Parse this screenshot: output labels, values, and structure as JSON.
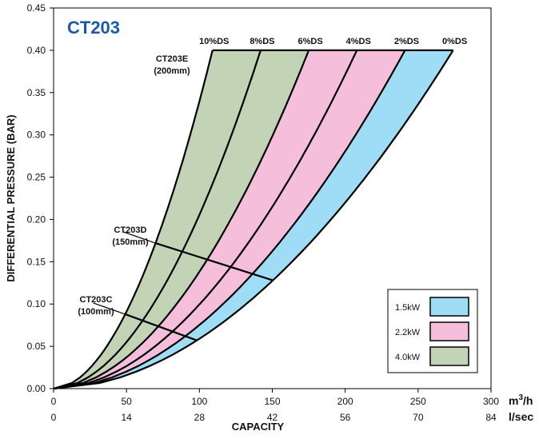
{
  "chart_data": {
    "type": "area",
    "title": "CT203",
    "xlabel": "CAPACITY",
    "ylabel": "DIFFERENTIAL PRESSURE (BAR)",
    "x_unit": "m³/h",
    "x2_unit": "l/sec",
    "xlim": [
      0,
      300
    ],
    "ylim": [
      0,
      0.45
    ],
    "x_ticks": [
      "0",
      "50",
      "100",
      "150",
      "200",
      "250",
      "300"
    ],
    "x2_ticks": [
      "0",
      "14",
      "28",
      "42",
      "56",
      "70",
      "84"
    ],
    "y_ticks": [
      "0.00",
      "0.05",
      "0.10",
      "0.15",
      "0.20",
      "0.25",
      "0.30",
      "0.35",
      "0.40",
      "0.45"
    ],
    "grid": false,
    "curve_labels": [
      "10%DS",
      "8%DS",
      "6%DS",
      "4%DS",
      "2%DS",
      "0%DS"
    ],
    "curves_at_max_pressure": [
      {
        "name": "10%DS",
        "x": 109,
        "y": 0.4
      },
      {
        "name": "8%DS",
        "x": 142,
        "y": 0.4
      },
      {
        "name": "6%DS",
        "x": 175,
        "y": 0.4
      },
      {
        "name": "4%DS",
        "x": 208,
        "y": 0.4
      },
      {
        "name": "2%DS",
        "x": 241,
        "y": 0.4
      },
      {
        "name": "0%DS",
        "x": 274,
        "y": 0.4
      }
    ],
    "bands": [
      {
        "name": "1.5kW",
        "color": "#9fdcf5",
        "between": [
          "2%DS",
          "0%DS"
        ]
      },
      {
        "name": "2.2kW",
        "color": "#f5bfdb",
        "between": [
          "6%DS",
          "2%DS"
        ]
      },
      {
        "name": "4.0kW",
        "color": "#c3d4b6",
        "between": [
          "10%DS",
          "6%DS"
        ]
      }
    ],
    "models": [
      {
        "name": "CT203E",
        "size": "(200mm)",
        "y": 0.4
      },
      {
        "name": "CT203D",
        "size": "(150mm)",
        "y_start": 0.172,
        "y_end": 0.128
      },
      {
        "name": "CT203C",
        "size": "(100mm)",
        "y_start": 0.088,
        "y_end": 0.057
      }
    ],
    "legend_position": "bottom-right"
  }
}
